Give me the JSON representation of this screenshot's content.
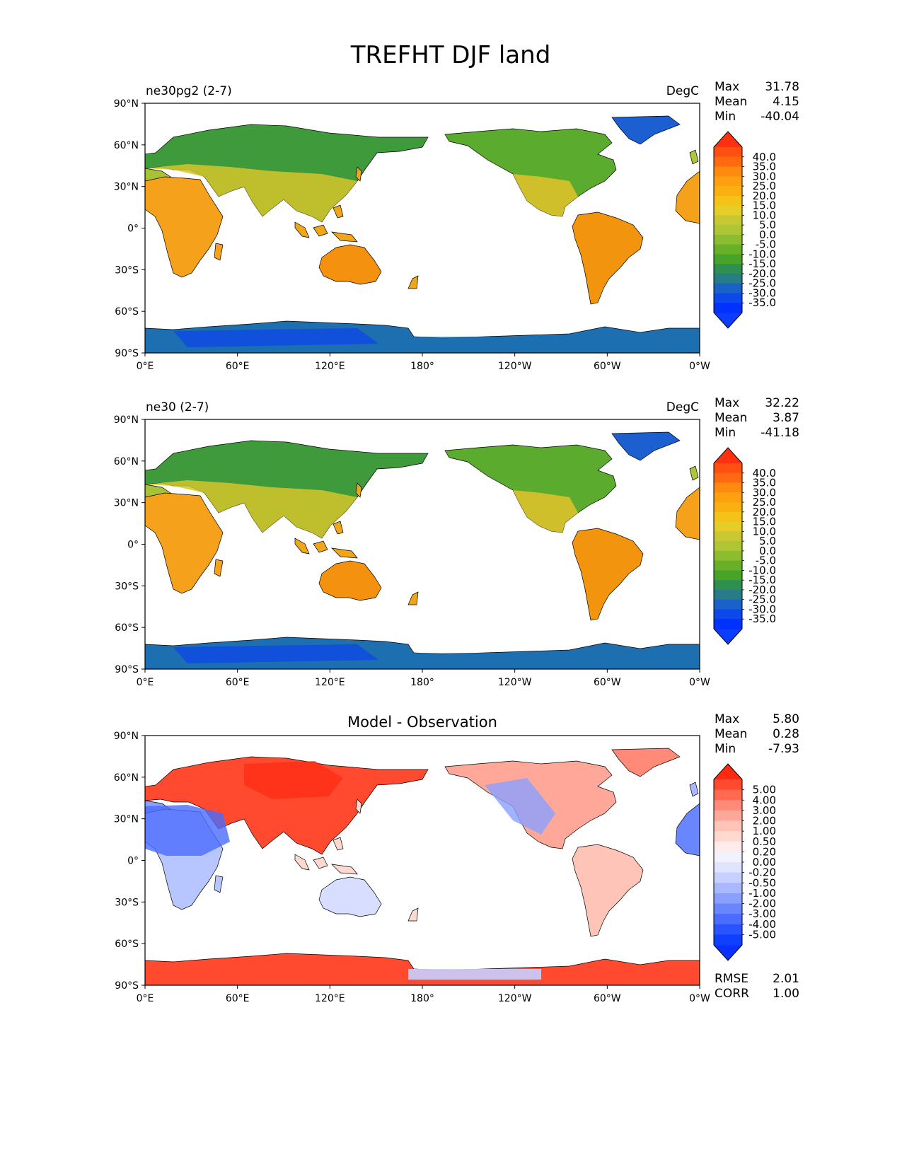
{
  "title": "TREFHT DJF land",
  "panels": [
    {
      "left_title": "ne30pg2 (2-7)",
      "right_title": "DegC",
      "center_title": "",
      "stats": [
        {
          "label": "Max",
          "value": "31.78"
        },
        {
          "label": "Mean",
          "value": "4.15"
        },
        {
          "label": "Min",
          "value": "-40.04"
        }
      ],
      "colorbar": {
        "labels": [
          "40.0",
          "35.0",
          "30.0",
          "25.0",
          "20.0",
          "15.0",
          "10.0",
          "5.0",
          "0.0",
          "-5.0",
          "-10.0",
          "-15.0",
          "-20.0",
          "-25.0",
          "-30.0",
          "-35.0"
        ],
        "colors": [
          "#ff5012",
          "#ff6a10",
          "#ff8a10",
          "#ffa010",
          "#f9b010",
          "#f5c218",
          "#e6cd28",
          "#c8c832",
          "#aec634",
          "#8cbc30",
          "#68b028",
          "#48a428",
          "#2e9050",
          "#277c88",
          "#1a62c8",
          "#0d48ea",
          "#0031ff"
        ],
        "extend_max": "#ff3010",
        "extend_min": "#0a3dff"
      },
      "bottom_stats": []
    },
    {
      "left_title": "ne30 (2-7)",
      "right_title": "DegC",
      "center_title": "",
      "stats": [
        {
          "label": "Max",
          "value": "32.22"
        },
        {
          "label": "Mean",
          "value": "3.87"
        },
        {
          "label": "Min",
          "value": "-41.18"
        }
      ],
      "colorbar": {
        "labels": [
          "40.0",
          "35.0",
          "30.0",
          "25.0",
          "20.0",
          "15.0",
          "10.0",
          "5.0",
          "0.0",
          "-5.0",
          "-10.0",
          "-15.0",
          "-20.0",
          "-25.0",
          "-30.0",
          "-35.0"
        ],
        "colors": [
          "#ff5012",
          "#ff6a10",
          "#ff8a10",
          "#ffa010",
          "#f9b010",
          "#f5c218",
          "#e6cd28",
          "#c8c832",
          "#aec634",
          "#8cbc30",
          "#68b028",
          "#48a428",
          "#2e9050",
          "#277c88",
          "#1a62c8",
          "#0d48ea",
          "#0031ff"
        ],
        "extend_max": "#ff3010",
        "extend_min": "#0a3dff"
      },
      "bottom_stats": []
    },
    {
      "left_title": "",
      "right_title": "",
      "center_title": "Model - Observation",
      "stats": [
        {
          "label": "Max",
          "value": "5.80"
        },
        {
          "label": "Mean",
          "value": "0.28"
        },
        {
          "label": "Min",
          "value": "-7.93"
        }
      ],
      "colorbar": {
        "labels": [
          "5.00",
          "4.00",
          "3.00",
          "2.00",
          "1.00",
          "0.50",
          "0.20",
          "0.00",
          "-0.20",
          "-0.50",
          "-1.00",
          "-2.00",
          "-3.00",
          "-4.00",
          "-5.00"
        ],
        "colors": [
          "#ff4a30",
          "#ff6a50",
          "#ff8a78",
          "#ffa89a",
          "#ffc4b8",
          "#ffd8d0",
          "#ffecea",
          "#f2f2ff",
          "#e0e4ff",
          "#c8d0ff",
          "#aab8ff",
          "#8aa0ff",
          "#6a86ff",
          "#4a6cff",
          "#2a54ff",
          "#1040ff"
        ],
        "extend_max": "#ff2a10",
        "extend_min": "#0a30ff"
      },
      "bottom_stats": [
        {
          "label": "RMSE",
          "value": "2.01"
        },
        {
          "label": "CORR",
          "value": "1.00"
        }
      ]
    }
  ],
  "axes": {
    "x_ticks": [
      "0°E",
      "60°E",
      "120°E",
      "180°",
      "120°W",
      "60°W",
      "0°W"
    ],
    "y_ticks": [
      "90°N",
      "60°N",
      "30°N",
      "0°",
      "30°S",
      "60°S",
      "90°S"
    ]
  },
  "chart_data": [
    {
      "type": "heatmap",
      "title": "ne30pg2 (2-7)",
      "units": "DegC",
      "variable": "TREFHT DJF land",
      "max": 31.78,
      "mean": 4.15,
      "min": -40.04,
      "levels": [
        -35,
        -30,
        -25,
        -20,
        -15,
        -10,
        -5,
        0,
        5,
        10,
        15,
        20,
        25,
        30,
        35,
        40
      ],
      "x_range": [
        0,
        360
      ],
      "y_range": [
        -90,
        90
      ]
    },
    {
      "type": "heatmap",
      "title": "ne30 (2-7)",
      "units": "DegC",
      "variable": "TREFHT DJF land",
      "max": 32.22,
      "mean": 3.87,
      "min": -41.18,
      "levels": [
        -35,
        -30,
        -25,
        -20,
        -15,
        -10,
        -5,
        0,
        5,
        10,
        15,
        20,
        25,
        30,
        35,
        40
      ],
      "x_range": [
        0,
        360
      ],
      "y_range": [
        -90,
        90
      ]
    },
    {
      "type": "heatmap",
      "title": "Model - Observation",
      "max": 5.8,
      "mean": 0.28,
      "min": -7.93,
      "rmse": 2.01,
      "corr": 1.0,
      "levels": [
        -5,
        -4,
        -3,
        -2,
        -1,
        -0.5,
        -0.2,
        0,
        0.2,
        0.5,
        1,
        2,
        3,
        4,
        5
      ],
      "x_range": [
        0,
        360
      ],
      "y_range": [
        -90,
        90
      ]
    }
  ]
}
